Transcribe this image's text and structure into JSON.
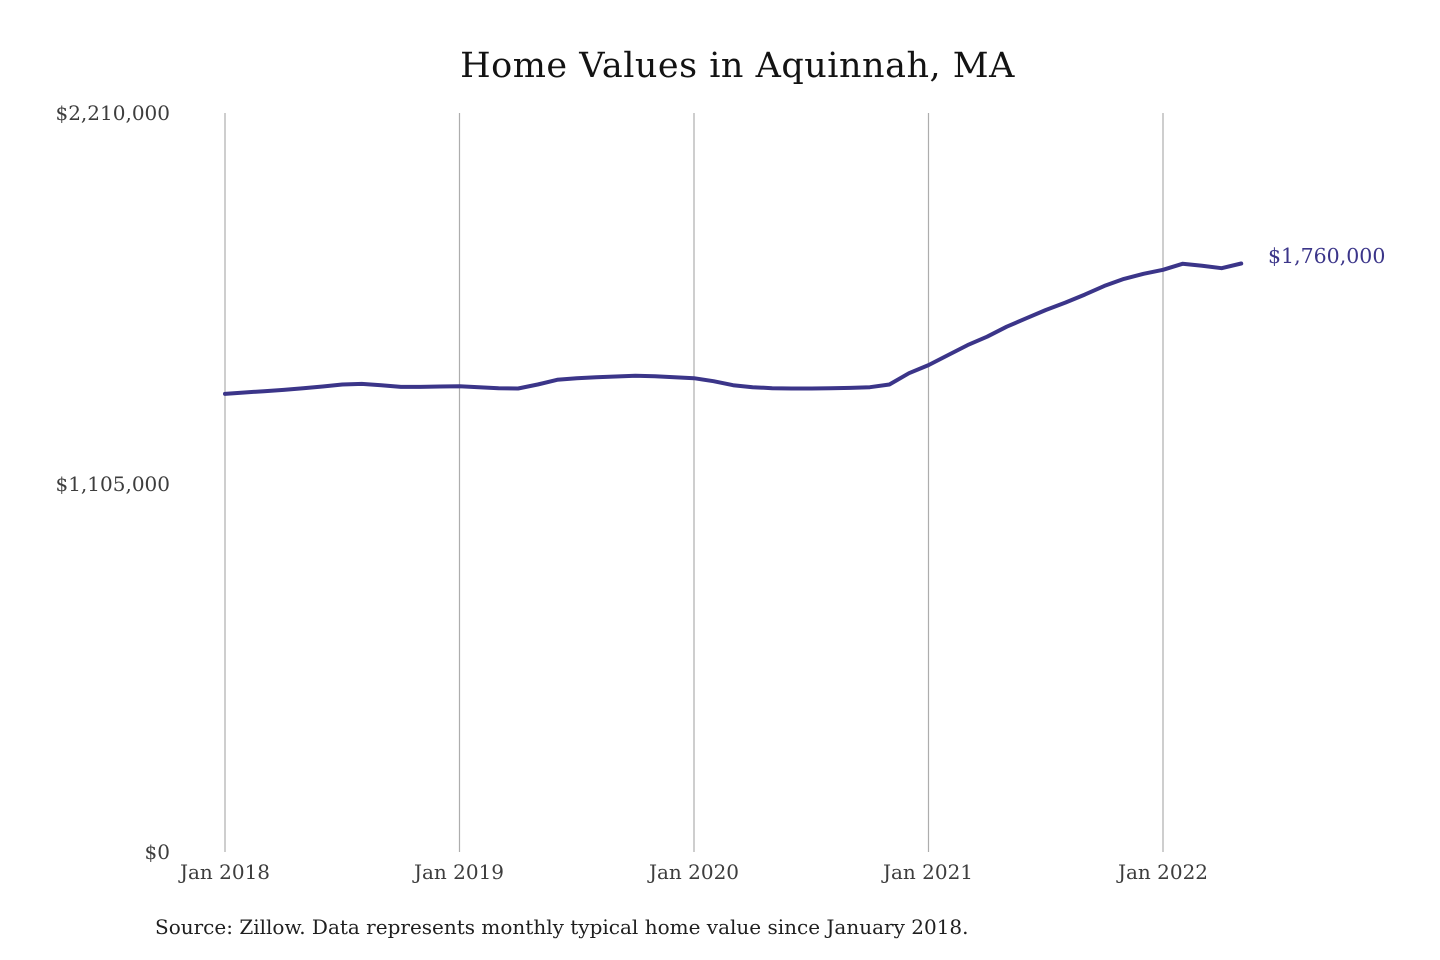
{
  "page": {
    "background": "#ffffff"
  },
  "chart_data": {
    "type": "line",
    "title": "Home Values in Aquinnah, MA",
    "source_note": "Source: Zillow. Data represents monthly typical home value since January 2018.",
    "series_name": "Monthly typical home value",
    "x": [
      "2018-01",
      "2018-02",
      "2018-03",
      "2018-04",
      "2018-05",
      "2018-06",
      "2018-07",
      "2018-08",
      "2018-09",
      "2018-10",
      "2018-11",
      "2018-12",
      "2019-01",
      "2019-02",
      "2019-03",
      "2019-04",
      "2019-05",
      "2019-06",
      "2019-07",
      "2019-08",
      "2019-09",
      "2019-10",
      "2019-11",
      "2019-12",
      "2020-01",
      "2020-02",
      "2020-03",
      "2020-04",
      "2020-05",
      "2020-06",
      "2020-07",
      "2020-08",
      "2020-09",
      "2020-10",
      "2020-11",
      "2020-12",
      "2021-01",
      "2021-02",
      "2021-03",
      "2021-04",
      "2021-05",
      "2021-06",
      "2021-07",
      "2021-08",
      "2021-09",
      "2021-10",
      "2021-11",
      "2021-12",
      "2022-01",
      "2022-02",
      "2022-03",
      "2022-04",
      "2022-05"
    ],
    "values": [
      1370000,
      1374000,
      1378000,
      1382000,
      1387000,
      1392000,
      1398000,
      1400000,
      1396000,
      1391000,
      1391000,
      1392000,
      1393000,
      1390000,
      1387000,
      1386000,
      1398000,
      1412000,
      1417000,
      1420000,
      1422000,
      1424000,
      1423000,
      1420000,
      1417000,
      1408000,
      1396000,
      1390000,
      1387000,
      1386000,
      1386000,
      1387000,
      1388000,
      1390000,
      1398000,
      1432000,
      1456000,
      1486000,
      1516000,
      1541000,
      1571000,
      1596000,
      1621000,
      1643000,
      1667000,
      1693000,
      1714000,
      1729000,
      1741000,
      1759000,
      1753000,
      1746000,
      1760000
    ],
    "end_value": 1760000,
    "end_label": "$1,760,000",
    "ylim": [
      0,
      2210000
    ],
    "y_ticks": [
      {
        "label": "$2,210,000",
        "value": 2210000
      },
      {
        "label": "$1,105,000",
        "value": 1105000
      },
      {
        "label": "$0",
        "value": 0
      }
    ],
    "x_ticks": [
      {
        "label": "Jan 2018",
        "month_index": 0
      },
      {
        "label": "Jan 2019",
        "month_index": 12
      },
      {
        "label": "Jan 2020",
        "month_index": 24
      },
      {
        "label": "Jan 2021",
        "month_index": 36
      },
      {
        "label": "Jan 2022",
        "month_index": 48
      }
    ],
    "grid": "vertical-only",
    "legend": "none",
    "line_color": "#3b3589",
    "line_width": 4,
    "grid_color": "#adadad",
    "label_color": "#3d3d3d",
    "title_color": "#131313"
  }
}
